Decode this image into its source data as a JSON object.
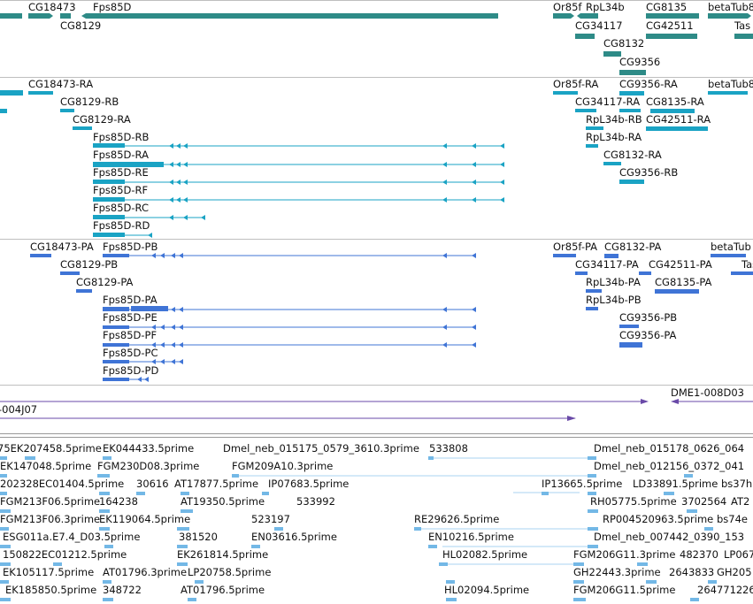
{
  "colors": {
    "gene": "#2e8b87",
    "transcript": "#1aa3c4",
    "protein": "#3f74d6",
    "clone": "#6a4aa8",
    "est": "#73b8e6",
    "est_line": "#a9d3f0",
    "separator": "#bfbfbf"
  },
  "tracks": {
    "genes": {
      "labels": [
        {
          "id": "g-cg18473",
          "text": "CG18473"
        },
        {
          "id": "g-fps85d",
          "text": "Fps85D"
        },
        {
          "id": "g-cg8129",
          "text": "CG8129"
        },
        {
          "id": "g-or85f",
          "text": "Or85f"
        },
        {
          "id": "g-rpl34b",
          "text": "RpL34b"
        },
        {
          "id": "g-cg8135",
          "text": "CG8135"
        },
        {
          "id": "g-betatub",
          "text": "betaTub8"
        },
        {
          "id": "g-cg34117",
          "text": "CG34117"
        },
        {
          "id": "g-cg42511",
          "text": "CG42511"
        },
        {
          "id": "g-tas",
          "text": "Tas"
        },
        {
          "id": "g-cg8132",
          "text": "CG8132"
        },
        {
          "id": "g-cg9356",
          "text": "CG9356"
        }
      ]
    },
    "transcripts": {
      "labels": [
        {
          "id": "t-cg18473-ra",
          "text": "CG18473-RA"
        },
        {
          "id": "t-cg8129-rb",
          "text": "CG8129-RB"
        },
        {
          "id": "t-cg8129-ra",
          "text": "CG8129-RA"
        },
        {
          "id": "t-fps85d-rb",
          "text": "Fps85D-RB"
        },
        {
          "id": "t-fps85d-ra",
          "text": "Fps85D-RA"
        },
        {
          "id": "t-fps85d-re",
          "text": "Fps85D-RE"
        },
        {
          "id": "t-fps85d-rf",
          "text": "Fps85D-RF"
        },
        {
          "id": "t-fps85d-rc",
          "text": "Fps85D-RC"
        },
        {
          "id": "t-fps85d-rd",
          "text": "Fps85D-RD"
        },
        {
          "id": "t-or85f-ra",
          "text": "Or85f-RA"
        },
        {
          "id": "t-cg9356-ra",
          "text": "CG9356-RA"
        },
        {
          "id": "t-betatub-ra",
          "text": "betaTub8"
        },
        {
          "id": "t-cg34117-ra",
          "text": "CG34117-RA"
        },
        {
          "id": "t-cg8135-ra",
          "text": "CG8135-RA"
        },
        {
          "id": "t-rpl34b-rb",
          "text": "RpL34b-RB"
        },
        {
          "id": "t-cg42511-ra",
          "text": "CG42511-RA"
        },
        {
          "id": "t-rpl34b-ra",
          "text": "RpL34b-RA"
        },
        {
          "id": "t-cg8132-ra",
          "text": "CG8132-RA"
        },
        {
          "id": "t-cg9356-rb",
          "text": "CG9356-RB"
        }
      ]
    },
    "proteins": {
      "labels": [
        {
          "id": "p-cg18473-pa",
          "text": "CG18473-PA"
        },
        {
          "id": "p-fps85d-pb",
          "text": "Fps85D-PB"
        },
        {
          "id": "p-cg8129-pb",
          "text": "CG8129-PB"
        },
        {
          "id": "p-cg8129-pa",
          "text": "CG8129-PA"
        },
        {
          "id": "p-fps85d-pa",
          "text": "Fps85D-PA"
        },
        {
          "id": "p-fps85d-pe",
          "text": "Fps85D-PE"
        },
        {
          "id": "p-fps85d-pf",
          "text": "Fps85D-PF"
        },
        {
          "id": "p-fps85d-pc",
          "text": "Fps85D-PC"
        },
        {
          "id": "p-fps85d-pd",
          "text": "Fps85D-PD"
        },
        {
          "id": "p-or85f-pa",
          "text": "Or85f-PA"
        },
        {
          "id": "p-cg8132-pa",
          "text": "CG8132-PA"
        },
        {
          "id": "p-betatub",
          "text": "betaTub"
        },
        {
          "id": "p-cg34117-pa",
          "text": "CG34117-PA"
        },
        {
          "id": "p-cg42511-pa",
          "text": "CG42511-PA"
        },
        {
          "id": "p-tas",
          "text": "Tas"
        },
        {
          "id": "p-rpl34b-pa",
          "text": "RpL34b-PA"
        },
        {
          "id": "p-cg8135-pa",
          "text": "CG8135-PA"
        },
        {
          "id": "p-rpl34b-pb",
          "text": "RpL34b-PB"
        },
        {
          "id": "p-cg9356-pb",
          "text": "CG9356-PB"
        },
        {
          "id": "p-cg9356-pa",
          "text": "CG9356-PA"
        }
      ]
    },
    "clones": {
      "labels": [
        {
          "id": "c-dme1",
          "text": "DME1-008D03"
        },
        {
          "id": "c-004j07",
          "text": "-004J07"
        }
      ]
    },
    "ests": {
      "labels": [
        {
          "id": "e-1",
          "text": "75EK207458.5prime"
        },
        {
          "id": "e-2",
          "text": "EK044433.5prime"
        },
        {
          "id": "e-3",
          "text": "Dmel_neb_015175_0579_3610.3prime"
        },
        {
          "id": "e-4",
          "text": "533808"
        },
        {
          "id": "e-5",
          "text": "Dmel_neb_015178_0626_064"
        },
        {
          "id": "e-6",
          "text": "EK147048.5prime"
        },
        {
          "id": "e-7",
          "text": "FGM230D08.3prime"
        },
        {
          "id": "e-8",
          "text": "FGM209A10.3prime"
        },
        {
          "id": "e-9",
          "text": "Dmel_neb_012156_0372_041"
        },
        {
          "id": "e-10",
          "text": "202328EC01404.5prime"
        },
        {
          "id": "e-11",
          "text": "30616"
        },
        {
          "id": "e-12",
          "text": "AT17877.5prime"
        },
        {
          "id": "e-13",
          "text": "IP07683.5prime"
        },
        {
          "id": "e-14",
          "text": "IP13665.5prime"
        },
        {
          "id": "e-15",
          "text": "LD33891.5prime"
        },
        {
          "id": "e-16",
          "text": "bs37h"
        },
        {
          "id": "e-17",
          "text": "FGM213F06.5prime"
        },
        {
          "id": "e-18",
          "text": "164238"
        },
        {
          "id": "e-19",
          "text": "AT19350.5prime"
        },
        {
          "id": "e-20",
          "text": "533992"
        },
        {
          "id": "e-21",
          "text": "RH05775.5prime"
        },
        {
          "id": "e-22",
          "text": "3702564"
        },
        {
          "id": "e-23",
          "text": "AT2"
        },
        {
          "id": "e-24",
          "text": "FGM213F06.3prime"
        },
        {
          "id": "e-25",
          "text": "EK119064.5prime"
        },
        {
          "id": "e-26",
          "text": "523197"
        },
        {
          "id": "e-27",
          "text": "RE29626.5prime"
        },
        {
          "id": "e-28",
          "text": "RP004520963.5prime"
        },
        {
          "id": "e-29",
          "text": "bs74e"
        },
        {
          "id": "e-30",
          "text": "ESG011a.E7.4_D03.5prime"
        },
        {
          "id": "e-31",
          "text": "381520"
        },
        {
          "id": "e-32",
          "text": "EN03616.5prime"
        },
        {
          "id": "e-33",
          "text": "EN10216.5prime"
        },
        {
          "id": "e-34",
          "text": "Dmel_neb_007442_0390_153"
        },
        {
          "id": "e-35",
          "text": "150822EC01212.5prime"
        },
        {
          "id": "e-36",
          "text": "EK261814.5prime"
        },
        {
          "id": "e-37",
          "text": "HL02082.5prime"
        },
        {
          "id": "e-38",
          "text": "FGM206G11.3prime"
        },
        {
          "id": "e-39",
          "text": "482370"
        },
        {
          "id": "e-40",
          "text": "LP067"
        },
        {
          "id": "e-41",
          "text": "EK105117.5prime"
        },
        {
          "id": "e-42",
          "text": "AT01796.3prime"
        },
        {
          "id": "e-43",
          "text": "LP20758.5prime"
        },
        {
          "id": "e-44",
          "text": "GH22443.3prime"
        },
        {
          "id": "e-45",
          "text": "2643833"
        },
        {
          "id": "e-46",
          "text": "GH205"
        },
        {
          "id": "e-47",
          "text": "EK185850.5prime"
        },
        {
          "id": "e-48",
          "text": "348722"
        },
        {
          "id": "e-49",
          "text": "AT01796.5prime"
        },
        {
          "id": "e-50",
          "text": "HL02094.5prime"
        },
        {
          "id": "e-51",
          "text": "FGM206G11.5prime"
        },
        {
          "id": "e-52",
          "text": "2647712"
        },
        {
          "id": "e-53",
          "text": "26"
        }
      ]
    }
  }
}
